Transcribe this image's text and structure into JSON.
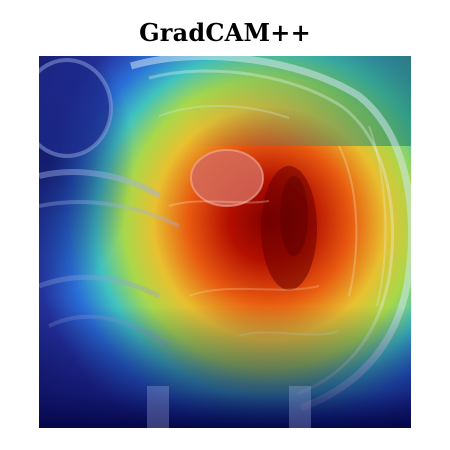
{
  "figure": {
    "title": "GradCAM++"
  },
  "image": {
    "icon": "mri-brain-gradcam-heatmap-overlay",
    "colormap": [
      "#00007f",
      "#0000ff",
      "#00ffff",
      "#ffff00",
      "#ff0000",
      "#7f0000"
    ]
  }
}
